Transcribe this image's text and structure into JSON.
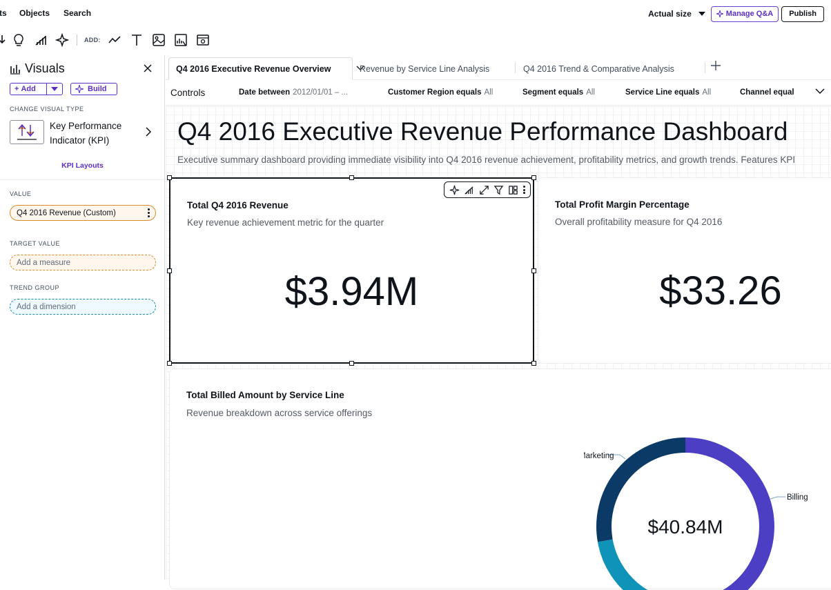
{
  "topbar": {
    "menu": [
      "ts",
      "Objects",
      "Search"
    ],
    "actual_size": "Actual size",
    "manage_qa": "Manage Q&A",
    "publish": "Publish"
  },
  "toolbar": {
    "add_label": "ADD:"
  },
  "left_panel": {
    "title": "Visuals",
    "add_button": "Add",
    "build_button": "Build",
    "change_visual_type_label": "CHANGE VISUAL TYPE",
    "visual_type_name": "Key Performance Indicator (KPI)",
    "kpi_layouts": "KPI Layouts",
    "value_label": "VALUE",
    "value_field": "Q4 2016 Revenue (Custom)",
    "target_label": "TARGET VALUE",
    "target_placeholder": "Add a measure",
    "trend_label": "TREND GROUP",
    "trend_placeholder": "Add a dimension"
  },
  "tabs": [
    {
      "label": "Q4 2016 Executive Revenue Overview",
      "active": true
    },
    {
      "label": "Revenue by Service Line Analysis",
      "active": false
    },
    {
      "label": "Q4 2016 Trend & Comparative Analysis",
      "active": false
    }
  ],
  "controls": {
    "title": "Controls",
    "items": [
      {
        "name": "Date between",
        "value": "2012/01/01 – ..."
      },
      {
        "name": "Customer Region equals",
        "value": "All"
      },
      {
        "name": "Segment equals",
        "value": "All"
      },
      {
        "name": "Service Line equals",
        "value": "All"
      },
      {
        "name": "Channel equal",
        "value": ""
      }
    ]
  },
  "sheet": {
    "title": "Q4 2016 Executive Revenue Performance Dashboard",
    "description": "Executive summary dashboard providing immediate visibility into Q4 2016 revenue achievement, profitability metrics, and growth trends. Features KPI"
  },
  "cards": {
    "revenue": {
      "title": "Total Q4 2016 Revenue",
      "subtitle": "Key revenue achievement metric for the quarter",
      "value": "$3.94M"
    },
    "margin": {
      "title": "Total Profit Margin Percentage",
      "subtitle": "Overall profitability measure for Q4 2016",
      "value": "$33.26"
    },
    "billed": {
      "title": "Total Billed Amount by Service Line",
      "subtitle": "Revenue breakdown across service offerings",
      "center_value": "$40.84M"
    }
  },
  "chart_data": {
    "type": "pie",
    "categories": [
      "Billing",
      "Marketing"
    ],
    "labels_shown": [
      "Marketing",
      "Billing"
    ],
    "center_label": "$40.84M",
    "colors": {
      "Billing": "#4c3fc4",
      "Marketing": "#0b3a66",
      "Other": "#0f93b8"
    }
  },
  "colors": {
    "accent": "#5b2fc4",
    "value_pill": "#d98b2a",
    "trend_pill": "#1a8aa8"
  }
}
